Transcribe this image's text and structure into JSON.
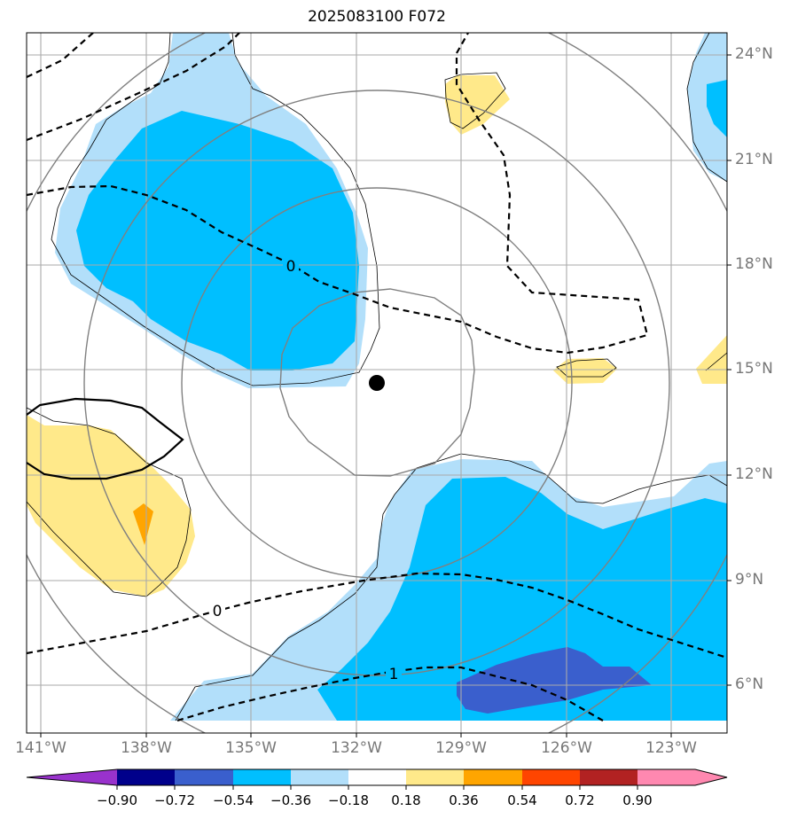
{
  "title": "2025083100 F072",
  "center_marker": "storm-center",
  "lat_labels": [
    "24°N",
    "21°N",
    "18°N",
    "15°N",
    "12°N",
    "9°N",
    "6°N"
  ],
  "lon_labels": [
    "141°W",
    "138°W",
    "135°W",
    "132°W",
    "129°W",
    "126°W",
    "123°W"
  ],
  "contour_labels": [
    "0",
    "0",
    "1"
  ],
  "colorbar": {
    "ticks": [
      "−0.90",
      "−0.72",
      "−0.54",
      "−0.36",
      "−0.18",
      "0.18",
      "0.36",
      "0.54",
      "0.72",
      "0.90"
    ],
    "colors": [
      "#9932cc",
      "#00008b",
      "#3a5fcd",
      "#00bfff",
      "#b2dffa",
      "#ffffff",
      "#ffe98a",
      "#ffa500",
      "#ff4500",
      "#b22222",
      "#ff88b0",
      "#ff88b0"
    ]
  },
  "colors": {
    "light_blue": "#b2dffa",
    "blue": "#00bfff",
    "dark_blue": "#3a5fcd",
    "yellow": "#ffe98a",
    "orange": "#ffa500",
    "grid": "#aaaaaa",
    "ring": "#808080"
  }
}
